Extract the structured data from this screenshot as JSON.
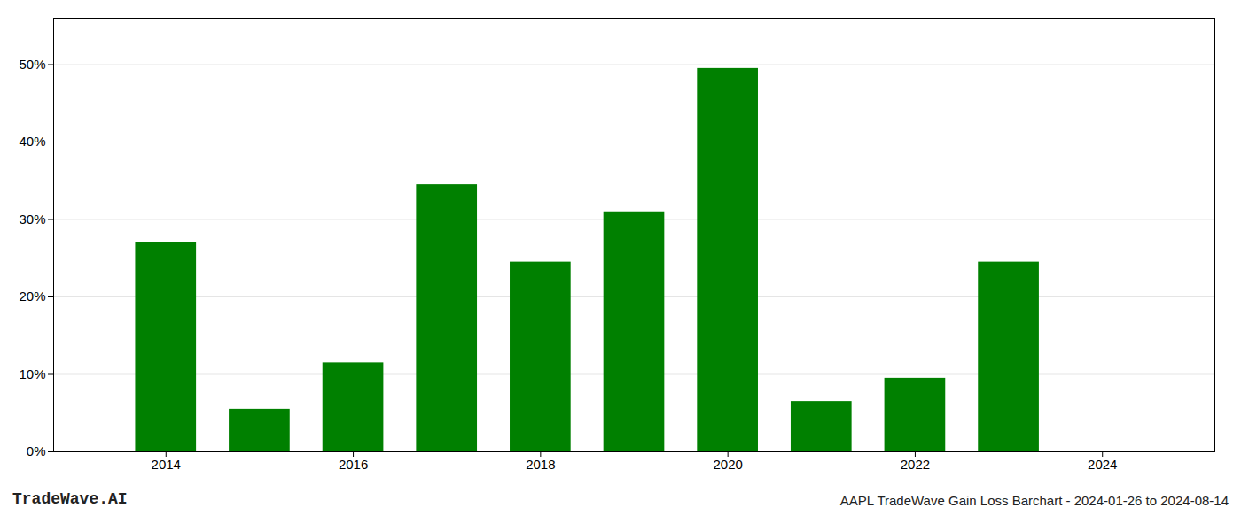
{
  "chart_data": {
    "type": "bar",
    "x": [
      2014,
      2015,
      2016,
      2017,
      2018,
      2019,
      2020,
      2021,
      2022,
      2023,
      2024
    ],
    "values": [
      0.27,
      0.055,
      0.115,
      0.345,
      0.245,
      0.31,
      0.495,
      0.065,
      0.095,
      0.245,
      0.0
    ],
    "color": "#008000",
    "xlim": [
      2012.8,
      2025.2
    ],
    "xticks": [
      2014,
      2016,
      2018,
      2020,
      2022,
      2024
    ],
    "ylim": [
      0,
      0.56
    ],
    "yticks": [
      {
        "value": 0.0,
        "label": "0%"
      },
      {
        "value": 0.1,
        "label": "10%"
      },
      {
        "value": 0.2,
        "label": "20%"
      },
      {
        "value": 0.3,
        "label": "30%"
      },
      {
        "value": 0.4,
        "label": "40%"
      },
      {
        "value": 0.5,
        "label": "50%"
      }
    ],
    "grid": true,
    "annotations": [
      "TradeWave.AI",
      "AAPL TradeWave Gain Loss Barchart - 2024-01-26 to 2024-08-14"
    ]
  }
}
